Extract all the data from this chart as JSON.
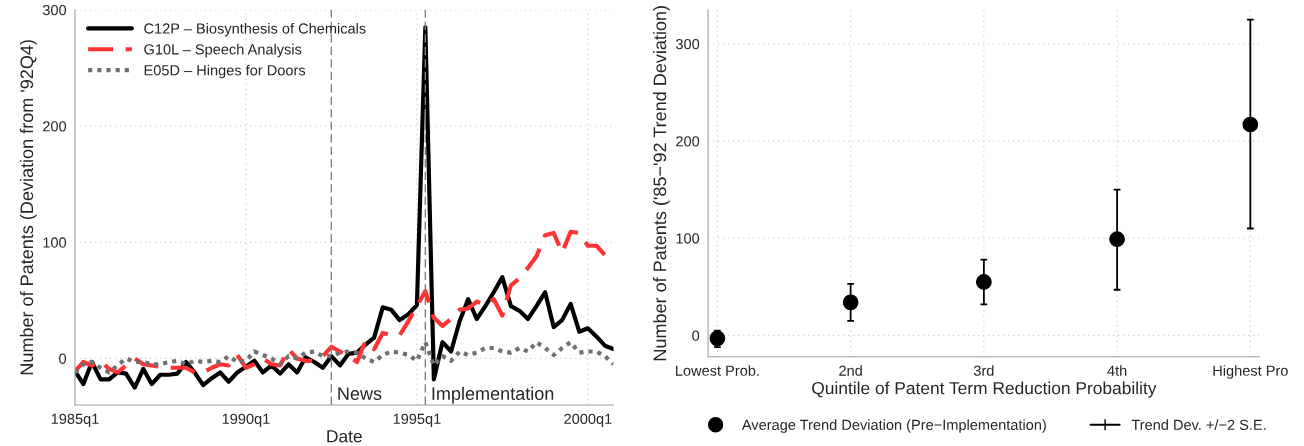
{
  "chart_data": [
    {
      "type": "line",
      "xlabel": "Date",
      "ylabel": "Number of Patents (Deviation from '92Q4)",
      "x": [
        "1985-01",
        "1985-04",
        "1985-07",
        "1985-10",
        "1986-01",
        "1986-04",
        "1986-07",
        "1986-10",
        "1987-01",
        "1987-04",
        "1987-07",
        "1987-10",
        "1988-01",
        "1988-04",
        "1988-07",
        "1988-10",
        "1989-01",
        "1989-04",
        "1989-07",
        "1989-10",
        "1990-01",
        "1990-04",
        "1990-07",
        "1990-10",
        "1991-01",
        "1991-04",
        "1991-07",
        "1991-10",
        "1992-01",
        "1992-04",
        "1992-07",
        "1992-10",
        "1993-01",
        "1993-04",
        "1993-07",
        "1993-10",
        "1994-01",
        "1994-04",
        "1994-07",
        "1994-10",
        "1995-01",
        "1995-04",
        "1995-07",
        "1995-10",
        "1996-01",
        "1996-04",
        "1996-07",
        "1996-10",
        "1997-01",
        "1997-04",
        "1997-07",
        "1997-10",
        "1998-01",
        "1998-04",
        "1998-07",
        "1998-10",
        "1999-01",
        "1999-04",
        "1999-07",
        "1999-10",
        "2000-01",
        "2000-04",
        "2000-07",
        "2000-10"
      ],
      "series": [
        {
          "name": "C12P – Biosynthesis of Chemicals",
          "color": "#000000",
          "line_style": "solid",
          "values": [
            -11,
            -22,
            -3,
            -18,
            -18,
            -12,
            -13,
            -25,
            -9,
            -22,
            -14,
            -14,
            -13,
            -3,
            -12,
            -23,
            -17,
            -12,
            -20,
            -12,
            -7,
            -2,
            -12,
            -6,
            -13,
            -5,
            -12,
            1,
            -3,
            -8,
            2,
            -6,
            4,
            5,
            12,
            18,
            44,
            42,
            33,
            38,
            46,
            285,
            -18,
            14,
            6,
            32,
            51,
            34,
            45,
            57,
            70,
            45,
            41,
            34,
            45,
            57,
            27,
            33,
            47,
            23,
            26,
            19,
            11,
            8
          ]
        },
        {
          "name": "G10L – Speech Analysis",
          "color": "#ff3333",
          "line_style": "dashed",
          "values": [
            -11,
            -3,
            -6,
            -2,
            -9,
            -12,
            -6,
            0,
            -5,
            -6,
            -7,
            -8,
            -8,
            -8,
            -12,
            -12,
            -8,
            -5,
            -6,
            3,
            -8,
            -5,
            0,
            -5,
            -6,
            8,
            0,
            -2,
            -2,
            2,
            10,
            6,
            2,
            -3,
            15,
            8,
            22,
            20,
            20,
            32,
            45,
            58,
            35,
            28,
            34,
            42,
            43,
            49,
            46,
            51,
            37,
            63,
            69,
            78,
            88,
            106,
            108,
            91,
            109,
            108,
            97,
            97,
            89,
            89
          ]
        },
        {
          "name": "E05D – Hinges for Doors",
          "color": "#707070",
          "line_style": "dotted",
          "values": [
            -12,
            -5,
            -3,
            -8,
            -12,
            -6,
            0,
            -3,
            -3,
            -5,
            -5,
            -3,
            -2,
            -5,
            -2,
            -3,
            -2,
            -3,
            2,
            -3,
            -2,
            6,
            3,
            0,
            -5,
            2,
            0,
            5,
            6,
            2,
            2,
            5,
            6,
            5,
            0,
            -3,
            3,
            6,
            5,
            3,
            -2,
            14,
            -6,
            2,
            -2,
            6,
            3,
            5,
            9,
            9,
            6,
            5,
            9,
            6,
            14,
            9,
            3,
            9,
            14,
            5,
            6,
            6,
            2,
            -5
          ]
        }
      ],
      "xlim": [
        "1985-01",
        "2000-10"
      ],
      "ylim": [
        -40,
        300
      ],
      "xticks": [
        {
          "value": "1985-01",
          "label": "1985q1"
        },
        {
          "value": "1990-01",
          "label": "1990q1"
        },
        {
          "value": "1995-01",
          "label": "1995q1"
        },
        {
          "value": "2000-01",
          "label": "2000q1"
        }
      ],
      "yticks": [
        0,
        100,
        200,
        300
      ],
      "ref_lines": [
        {
          "axis": "x",
          "value": "1992-07",
          "label": "News",
          "color": "#808080",
          "line_style": "dashed"
        },
        {
          "axis": "x",
          "value": "1995-04",
          "label": "Implementation",
          "color": "#808080",
          "line_style": "dashed"
        }
      ],
      "grid": true,
      "legend": "top left"
    },
    {
      "type": "scatter",
      "xlabel": "Quintile of Patent Term Reduction Probability",
      "ylabel": "Number of Patents ('85−'92 Trend Deviation)",
      "categories": [
        "Lowest Prob.",
        "2nd",
        "3rd",
        "4th",
        "Highest Pro"
      ],
      "series": [
        {
          "name": "Average Trend Deviation (Pre−Implementation)",
          "color": "#000000",
          "values": [
            -3,
            34,
            55,
            99,
            217
          ],
          "errors": [
            [
              -12,
              5
            ],
            [
              15,
              53
            ],
            [
              32,
              78
            ],
            [
              47,
              150
            ],
            [
              110,
              325
            ]
          ]
        }
      ],
      "annotations": [
        "Trend Dev. +/−2 S.E."
      ],
      "ylim": [
        -22,
        335
      ],
      "yticks": [
        0,
        100,
        200,
        300
      ],
      "marker": "circle",
      "grid": true,
      "legend": "bottom"
    }
  ]
}
